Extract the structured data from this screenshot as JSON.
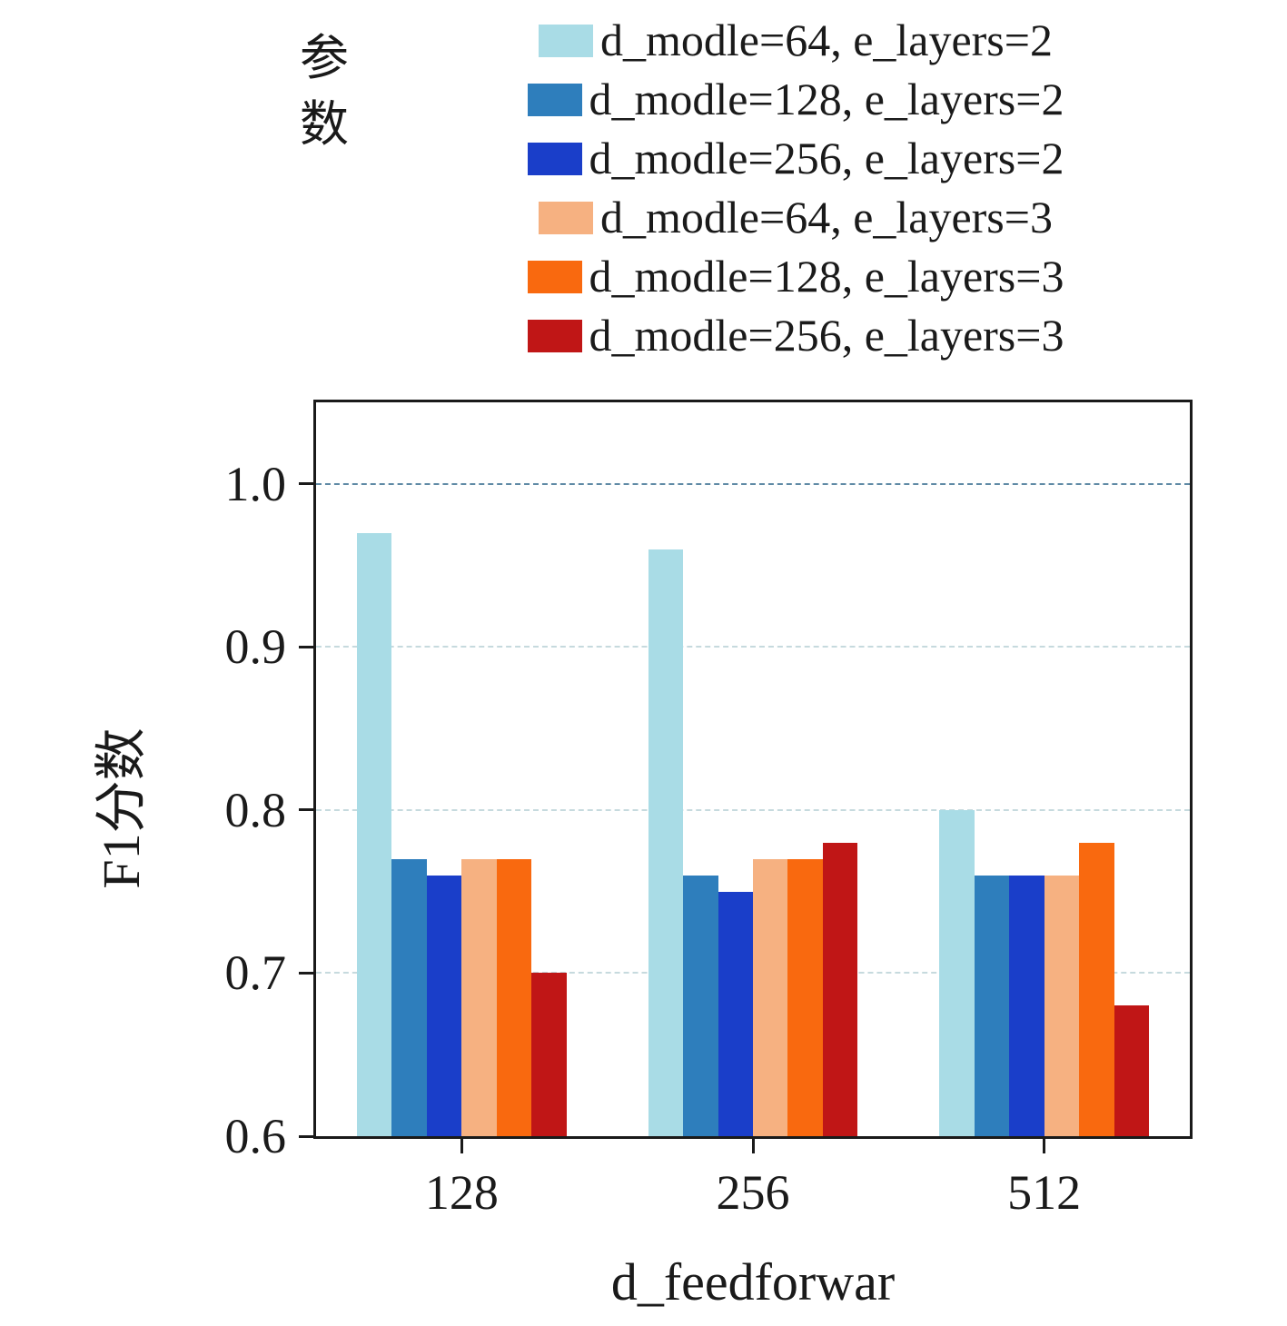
{
  "chart_data": {
    "type": "bar",
    "title": "",
    "xlabel": "d_feedforwar",
    "ylabel": "F1分数",
    "legend_title": "参数",
    "legend_position": "top",
    "categories": [
      "128",
      "256",
      "512"
    ],
    "ylim": [
      0.6,
      1.05
    ],
    "yticks": [
      {
        "label": "0.6",
        "value": 0.6
      },
      {
        "label": "0.7",
        "value": 0.7
      },
      {
        "label": "0.8",
        "value": 0.8
      },
      {
        "label": "0.9",
        "value": 0.9
      },
      {
        "label": "1.0",
        "value": 1.0
      }
    ],
    "gridlines": [
      {
        "value": 0.7,
        "color": "#c6dade"
      },
      {
        "value": 0.8,
        "color": "#c6dade"
      },
      {
        "value": 0.9,
        "color": "#c6dade"
      },
      {
        "value": 1.0,
        "color": "#5f8aa5"
      }
    ],
    "series": [
      {
        "name": "d_modle=64, e_layers=2",
        "color": "#a9dce6",
        "values": [
          0.97,
          0.96,
          0.8
        ]
      },
      {
        "name": "d_modle=128, e_layers=2",
        "color": "#2e7ebc",
        "values": [
          0.77,
          0.76,
          0.76
        ]
      },
      {
        "name": "d_modle=256, e_layers=2",
        "color": "#1a3ec9",
        "values": [
          0.76,
          0.75,
          0.76
        ]
      },
      {
        "name": "d_modle=64, e_layers=3",
        "color": "#f6b181",
        "values": [
          0.77,
          0.77,
          0.76
        ]
      },
      {
        "name": "d_modle=128, e_layers=3",
        "color": "#f9690f",
        "values": [
          0.77,
          0.77,
          0.78
        ]
      },
      {
        "name": "d_modle=256, e_layers=3",
        "color": "#c01616",
        "values": [
          0.7,
          0.78,
          0.68
        ]
      }
    ],
    "grid": {
      "style": "dashed",
      "on": true
    },
    "cluster_width_fraction": 0.72
  }
}
